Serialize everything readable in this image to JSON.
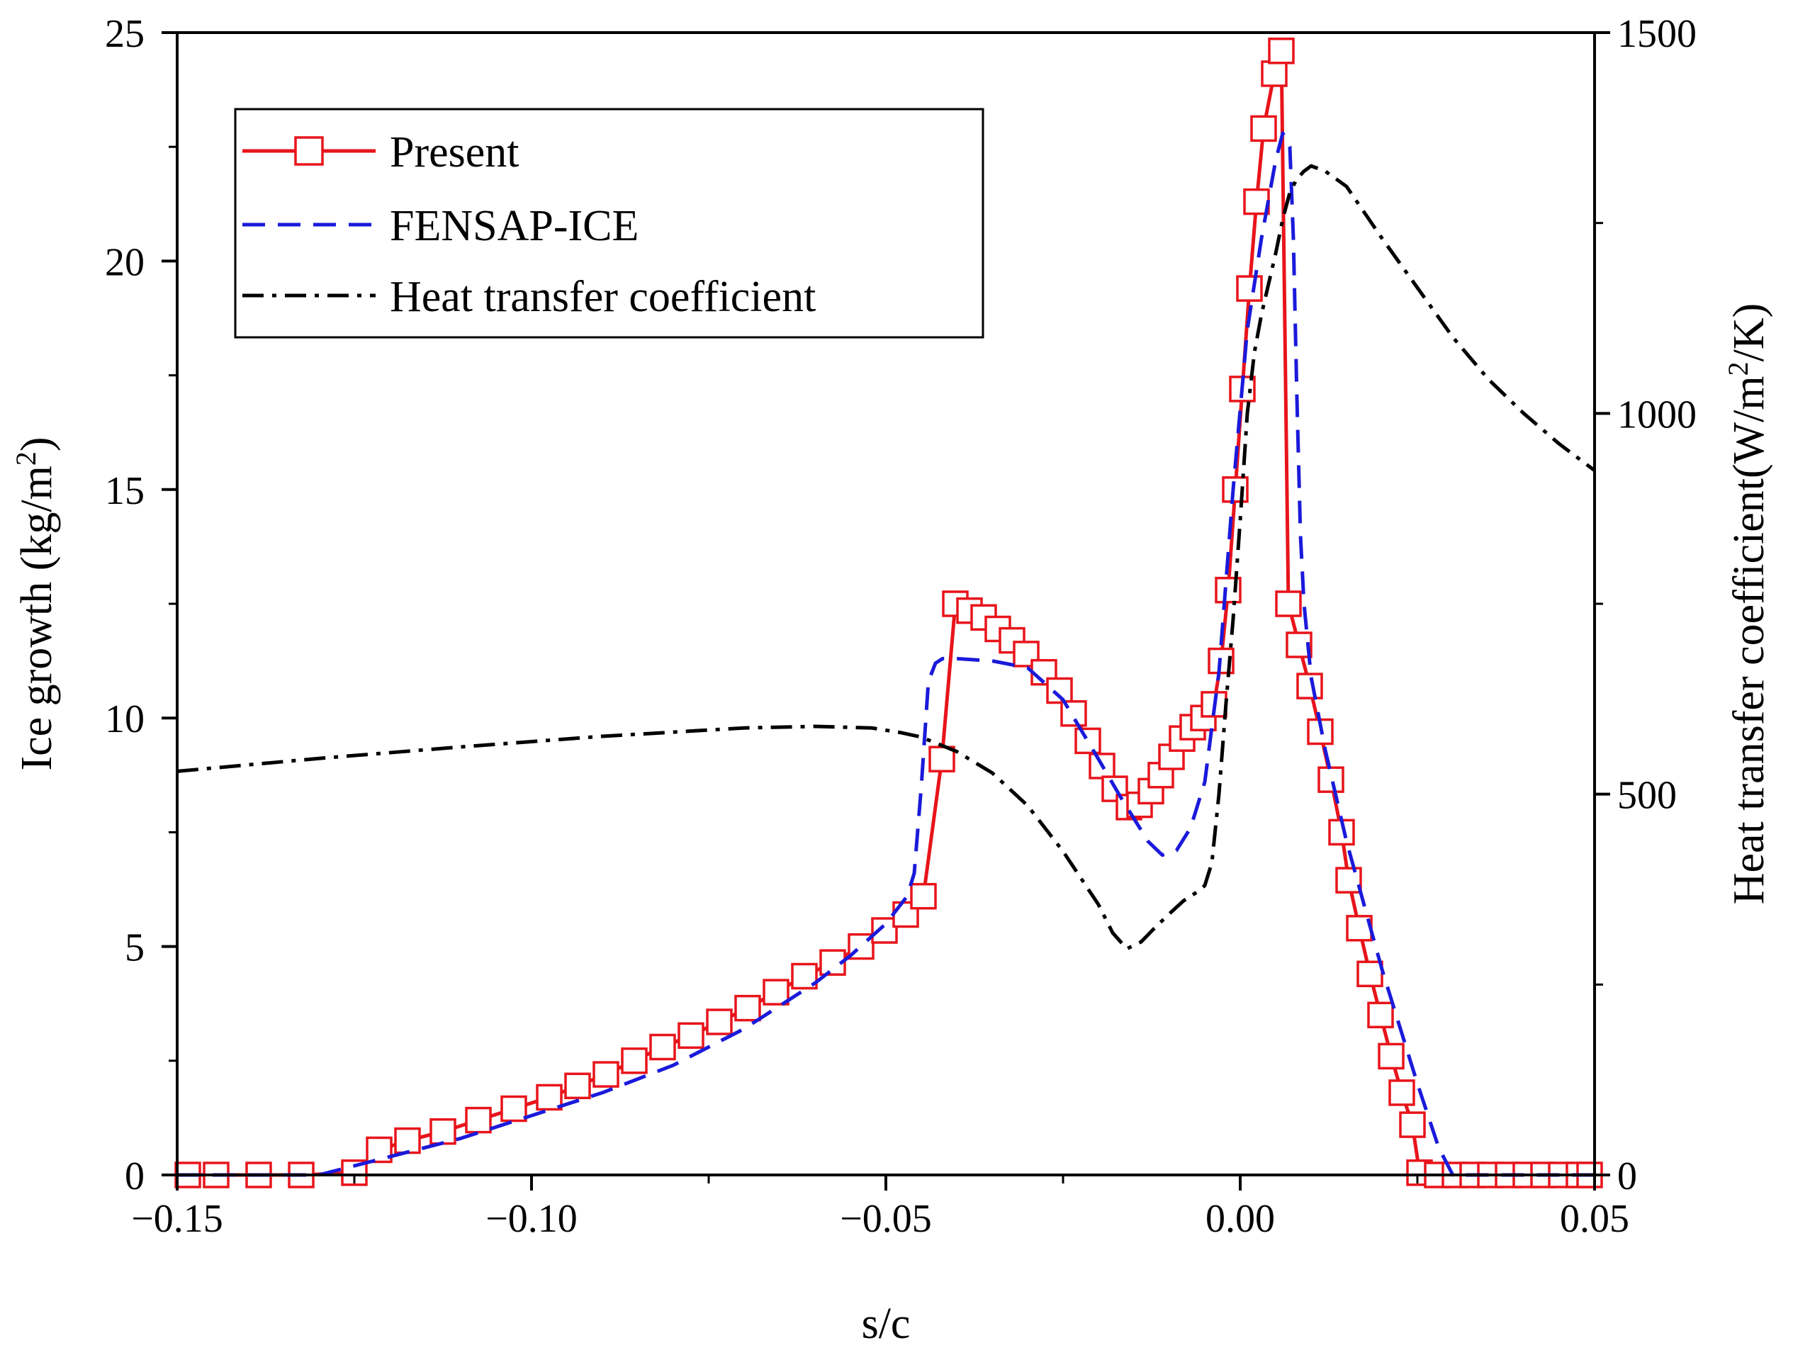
{
  "chart_data": {
    "type": "line",
    "xlabel": "s/c",
    "ylabel_left": {
      "pre": "Ice growth (kg/m",
      "sup": "2",
      "post": ")"
    },
    "ylabel_right": {
      "pre": "Heat transfer coefficient(W/m",
      "sup": "2",
      "post": "/K)"
    },
    "xlim": [
      -0.15,
      0.05
    ],
    "ylim_left": [
      0,
      25
    ],
    "ylim_right": [
      0,
      1500
    ],
    "xticks": [
      -0.15,
      -0.1,
      -0.05,
      0.0,
      0.05
    ],
    "xtick_labels": [
      "−0.15",
      "−0.10",
      "−0.05",
      "0.00",
      "0.05"
    ],
    "yticks_left": [
      0,
      5,
      10,
      15,
      20,
      25
    ],
    "ytick_labels_left": [
      "0",
      "5",
      "10",
      "15",
      "20",
      "25"
    ],
    "yticks_right": [
      0,
      500,
      1000,
      1500
    ],
    "ytick_labels_right": [
      "0",
      "500",
      "1000",
      "1500"
    ],
    "grid": false,
    "legend_position": "top-left",
    "series": [
      {
        "name": "Present",
        "axis": "left",
        "color": "#e8141b",
        "style": "solid-square-markers",
        "x": [
          -0.1485,
          -0.1445,
          -0.1385,
          -0.1325,
          -0.125,
          -0.1215,
          -0.1175,
          -0.1125,
          -0.1075,
          -0.1025,
          -0.0975,
          -0.0935,
          -0.0895,
          -0.0855,
          -0.0815,
          -0.0775,
          -0.0735,
          -0.0695,
          -0.0655,
          -0.0615,
          -0.0575,
          -0.0535,
          -0.0502,
          -0.0472,
          -0.0447,
          -0.0421,
          -0.0402,
          -0.0382,
          -0.0362,
          -0.0342,
          -0.0322,
          -0.0302,
          -0.0277,
          -0.0255,
          -0.0235,
          -0.0215,
          -0.0195,
          -0.0177,
          -0.0157,
          -0.0142,
          -0.0126,
          -0.0112,
          -0.0097,
          -0.0082,
          -0.0067,
          -0.0052,
          -0.0037,
          -0.0027,
          -0.0017,
          -0.0007,
          0.0003,
          0.0013,
          0.0023,
          0.0033,
          0.0048,
          0.0058,
          0.0068,
          0.0083,
          0.0098,
          0.0113,
          0.0128,
          0.0143,
          0.0153,
          0.0168,
          0.0183,
          0.0198,
          0.0213,
          0.0228,
          0.0243,
          0.0253,
          0.0278,
          0.0303,
          0.0328,
          0.0353,
          0.0378,
          0.0403,
          0.0428,
          0.0453,
          0.0478,
          0.0493
        ],
        "y": [
          0,
          0,
          0,
          0,
          0.05,
          0.55,
          0.75,
          0.95,
          1.2,
          1.45,
          1.7,
          1.95,
          2.2,
          2.5,
          2.8,
          3.05,
          3.35,
          3.65,
          4.0,
          4.35,
          4.65,
          5.0,
          5.35,
          5.7,
          6.1,
          9.1,
          12.5,
          12.35,
          12.2,
          11.95,
          11.7,
          11.4,
          11.0,
          10.6,
          10.1,
          9.5,
          8.95,
          8.45,
          8.05,
          8.1,
          8.4,
          8.75,
          9.15,
          9.55,
          9.8,
          10.0,
          10.3,
          11.25,
          12.8,
          15.0,
          17.2,
          19.4,
          21.3,
          22.9,
          24.1,
          24.6,
          12.5,
          11.6,
          10.7,
          9.7,
          8.65,
          7.5,
          6.45,
          5.4,
          4.4,
          3.5,
          2.6,
          1.8,
          1.1,
          0.05,
          0,
          0,
          0,
          0,
          0,
          0,
          0,
          0,
          0,
          0
        ]
      },
      {
        "name": "FENSAP-ICE",
        "axis": "left",
        "color": "#1a1adb",
        "style": "dashed",
        "x": [
          -0.15,
          -0.13,
          -0.12,
          -0.11,
          -0.1,
          -0.09,
          -0.08,
          -0.07,
          -0.06,
          -0.055,
          -0.05,
          -0.047,
          -0.046,
          -0.045,
          -0.044,
          -0.043,
          -0.042,
          -0.04,
          -0.035,
          -0.03,
          -0.025,
          -0.02,
          -0.017,
          -0.015,
          -0.013,
          -0.011,
          -0.009,
          -0.007,
          -0.005,
          -0.003,
          -0.001,
          0.001,
          0.003,
          0.005,
          0.006,
          0.007,
          0.0075,
          0.008,
          0.0085,
          0.009,
          0.01,
          0.012,
          0.015,
          0.02,
          0.025,
          0.028,
          0.03,
          0.05
        ],
        "y": [
          0,
          0,
          0.4,
          0.8,
          1.3,
          1.8,
          2.4,
          3.2,
          4.2,
          4.8,
          5.5,
          6.1,
          6.6,
          8.5,
          10.8,
          11.2,
          11.3,
          11.3,
          11.25,
          11.1,
          10.4,
          9.1,
          8.3,
          7.8,
          7.3,
          7.0,
          7.1,
          7.6,
          8.6,
          11.0,
          15.0,
          18.5,
          20.5,
          22.2,
          22.8,
          22.5,
          20.5,
          17.0,
          14.0,
          12.5,
          10.9,
          9.3,
          7.3,
          4.5,
          2.0,
          0.6,
          0,
          0
        ]
      },
      {
        "name": "Heat transfer coefficient",
        "axis": "right",
        "color": "#000000",
        "style": "dash-dot",
        "x": [
          -0.15,
          -0.13,
          -0.11,
          -0.09,
          -0.07,
          -0.06,
          -0.052,
          -0.048,
          -0.045,
          -0.04,
          -0.035,
          -0.03,
          -0.025,
          -0.02,
          -0.018,
          -0.016,
          -0.014,
          -0.012,
          -0.01,
          -0.008,
          -0.006,
          -0.005,
          -0.004,
          -0.003,
          -0.002,
          -0.001,
          0.0,
          0.001,
          0.002,
          0.003,
          0.004,
          0.005,
          0.006,
          0.007,
          0.008,
          0.009,
          0.01,
          0.012,
          0.015,
          0.02,
          0.025,
          0.03,
          0.035,
          0.04,
          0.045,
          0.05
        ],
        "y": [
          530,
          547,
          562,
          576,
          587,
          589,
          587,
          581,
          575,
          556,
          528,
          485,
          425,
          355,
          318,
          297,
          306,
          325,
          343,
          360,
          372,
          380,
          410,
          500,
          620,
          730,
          860,
          1000,
          1080,
          1130,
          1170,
          1210,
          1255,
          1290,
          1308,
          1318,
          1325,
          1318,
          1298,
          1230,
          1165,
          1100,
          1045,
          1000,
          960,
          925
        ]
      }
    ]
  }
}
